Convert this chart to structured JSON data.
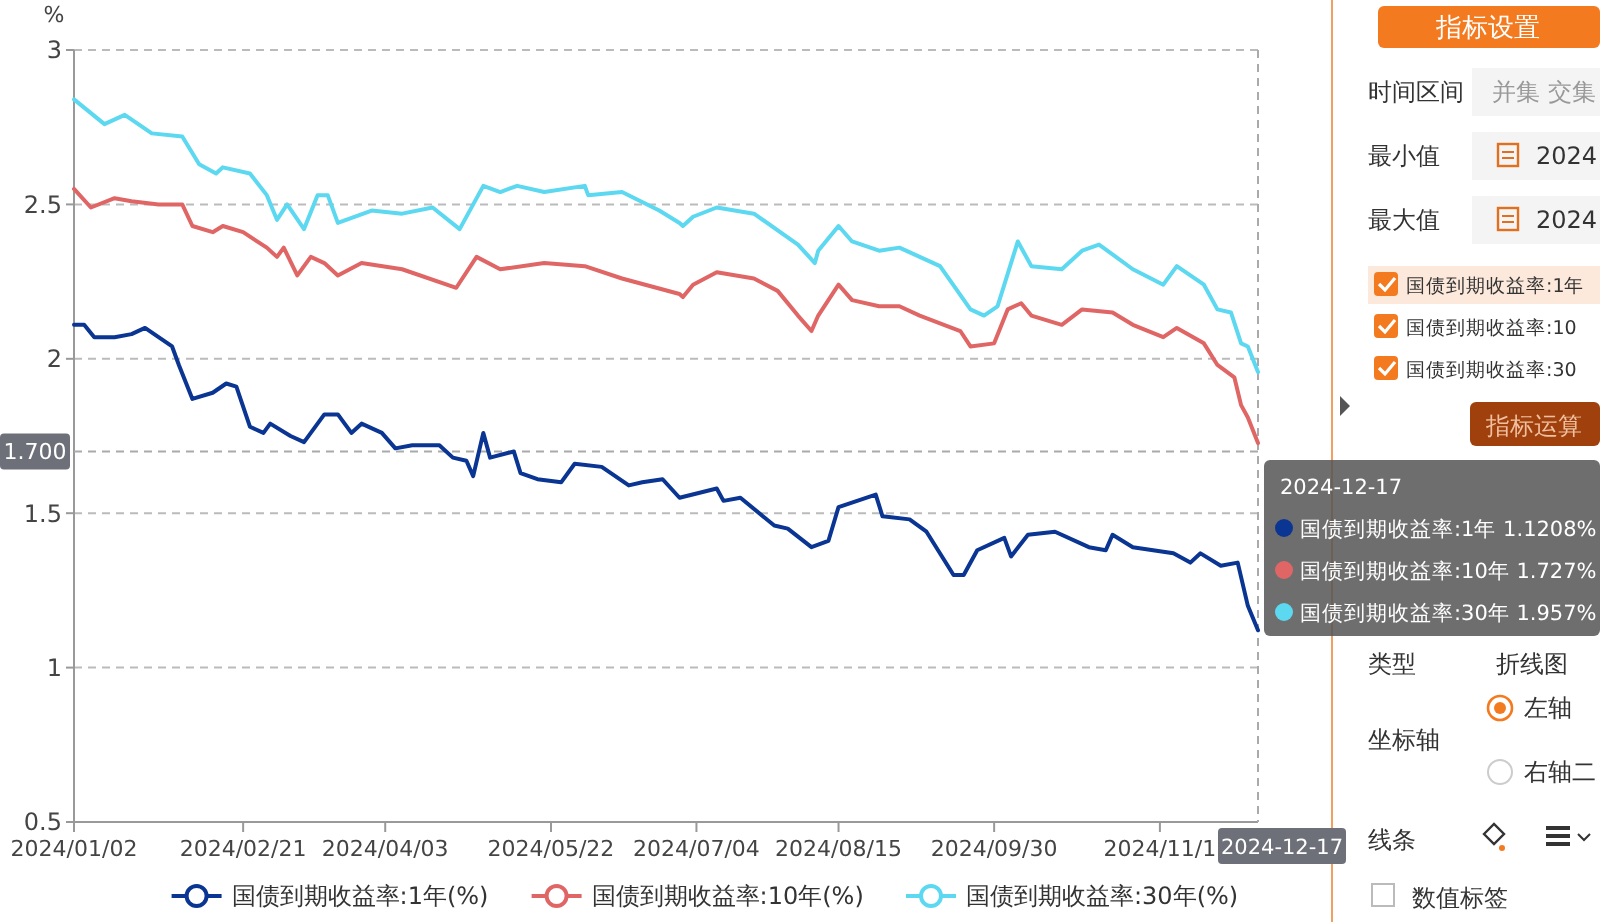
{
  "chart_data": [
    {
      "type": "line",
      "ylabel": "%",
      "xlim": [
        "2024-01-02",
        "2024-12-17"
      ],
      "xticks": [
        {
          "value": "2024-01-02",
          "label": "2024/01/02"
        },
        {
          "value": "2024-02-21",
          "label": "2024/02/21"
        },
        {
          "value": "2024-04-03",
          "label": "2024/04/03"
        },
        {
          "value": "2024-05-22",
          "label": "2024/05/22"
        },
        {
          "value": "2024-07-04",
          "label": "2024/07/04"
        },
        {
          "value": "2024-08-15",
          "label": "2024/08/15"
        },
        {
          "value": "2024-09-30",
          "label": "2024/09/30"
        },
        {
          "value": "2024-11-18",
          "label": "2024/11/1"
        }
      ],
      "ylim": [
        0.5,
        3
      ],
      "yticks": [
        0.5,
        1,
        1.5,
        2,
        2.5,
        3
      ],
      "grid": "y",
      "legend": "bottom",
      "marker": "none",
      "line_style": "solid",
      "ref_lines": [
        {
          "axis": "y",
          "value": 1.7,
          "label": "1.700"
        },
        {
          "axis": "x",
          "value": "2024-12-17",
          "label": "2024-12-17"
        }
      ],
      "annotations": [
        "2024-12-17",
        "国债到期收益率:1年 1.1208%",
        "国债到期收益率:10年 1.727%",
        "国债到期收益率:30年 1.957%"
      ],
      "series": [
        {
          "name": "国债到期收益率:1年(%)",
          "color": "#0a3592",
          "x": [
            "2024-01-02",
            "2024-01-05",
            "2024-01-08",
            "2024-01-14",
            "2024-01-19",
            "2024-01-23",
            "2024-01-27",
            "2024-01-31",
            "2024-02-02",
            "2024-02-06",
            "2024-02-12",
            "2024-02-16",
            "2024-02-19",
            "2024-02-23",
            "2024-02-27",
            "2024-02-29",
            "2024-03-06",
            "2024-03-10",
            "2024-03-16",
            "2024-03-20",
            "2024-03-24",
            "2024-03-27",
            "2024-04-02",
            "2024-04-06",
            "2024-04-11",
            "2024-04-15",
            "2024-04-19",
            "2024-04-23",
            "2024-04-27",
            "2024-04-29",
            "2024-05-02",
            "2024-05-04",
            "2024-05-11",
            "2024-05-13",
            "2024-05-18",
            "2024-05-25",
            "2024-05-29",
            "2024-06-06",
            "2024-06-14",
            "2024-06-18",
            "2024-06-24",
            "2024-06-29",
            "2024-07-10",
            "2024-07-12",
            "2024-07-17",
            "2024-07-27",
            "2024-07-31",
            "2024-08-07",
            "2024-08-12",
            "2024-08-15",
            "2024-08-26",
            "2024-08-28",
            "2024-09-05",
            "2024-09-10",
            "2024-09-18",
            "2024-09-21",
            "2024-09-25",
            "2024-10-03",
            "2024-10-05",
            "2024-10-10",
            "2024-10-18",
            "2024-10-28",
            "2024-11-02",
            "2024-11-04",
            "2024-11-10",
            "2024-11-22",
            "2024-11-27",
            "2024-11-30",
            "2024-12-06",
            "2024-12-11",
            "2024-12-14",
            "2024-12-17"
          ],
          "values": [
            2.11,
            2.11,
            2.07,
            2.07,
            2.08,
            2.1,
            2.07,
            2.04,
            1.98,
            1.87,
            1.89,
            1.92,
            1.91,
            1.78,
            1.76,
            1.79,
            1.75,
            1.73,
            1.82,
            1.82,
            1.76,
            1.79,
            1.76,
            1.71,
            1.72,
            1.72,
            1.72,
            1.68,
            1.67,
            1.62,
            1.76,
            1.68,
            1.7,
            1.63,
            1.61,
            1.6,
            1.66,
            1.65,
            1.59,
            1.6,
            1.61,
            1.55,
            1.58,
            1.54,
            1.55,
            1.46,
            1.45,
            1.39,
            1.41,
            1.52,
            1.56,
            1.49,
            1.48,
            1.44,
            1.3,
            1.3,
            1.38,
            1.42,
            1.36,
            1.43,
            1.44,
            1.39,
            1.38,
            1.43,
            1.39,
            1.37,
            1.34,
            1.37,
            1.33,
            1.34,
            1.2,
            1.1208
          ]
        },
        {
          "name": "国债到期收益率:10年(%)",
          "color": "#e06666",
          "x": [
            "2024-01-02",
            "2024-01-07",
            "2024-01-14",
            "2024-01-19",
            "2024-01-27",
            "2024-02-03",
            "2024-02-06",
            "2024-02-12",
            "2024-02-15",
            "2024-02-21",
            "2024-02-28",
            "2024-03-02",
            "2024-03-04",
            "2024-03-08",
            "2024-03-12",
            "2024-03-16",
            "2024-03-20",
            "2024-03-27",
            "2024-04-08",
            "2024-04-24",
            "2024-04-30",
            "2024-05-07",
            "2024-05-20",
            "2024-06-01",
            "2024-06-12",
            "2024-06-29",
            "2024-06-30",
            "2024-07-03",
            "2024-07-10",
            "2024-07-21",
            "2024-07-28",
            "2024-08-03",
            "2024-08-07",
            "2024-08-09",
            "2024-08-15",
            "2024-08-19",
            "2024-08-27",
            "2024-09-02",
            "2024-09-08",
            "2024-09-20",
            "2024-09-23",
            "2024-09-30",
            "2024-10-04",
            "2024-10-08",
            "2024-10-11",
            "2024-10-20",
            "2024-10-26",
            "2024-11-04",
            "2024-11-10",
            "2024-11-19",
            "2024-11-23",
            "2024-12-01",
            "2024-12-05",
            "2024-12-10",
            "2024-12-12",
            "2024-12-14",
            "2024-12-17"
          ],
          "values": [
            2.55,
            2.49,
            2.52,
            2.51,
            2.5,
            2.5,
            2.43,
            2.41,
            2.43,
            2.41,
            2.36,
            2.33,
            2.36,
            2.27,
            2.33,
            2.31,
            2.27,
            2.31,
            2.29,
            2.23,
            2.33,
            2.29,
            2.31,
            2.3,
            2.26,
            2.21,
            2.2,
            2.24,
            2.28,
            2.26,
            2.22,
            2.14,
            2.09,
            2.14,
            2.24,
            2.19,
            2.17,
            2.17,
            2.14,
            2.09,
            2.04,
            2.05,
            2.16,
            2.18,
            2.14,
            2.11,
            2.16,
            2.15,
            2.11,
            2.07,
            2.1,
            2.05,
            1.98,
            1.94,
            1.85,
            1.81,
            1.727
          ]
        },
        {
          "name": "国债到期收益率:30年(%)",
          "color": "#5cd8f0",
          "x": [
            "2024-01-02",
            "2024-01-11",
            "2024-01-17",
            "2024-01-25",
            "2024-02-03",
            "2024-02-08",
            "2024-02-13",
            "2024-02-15",
            "2024-02-23",
            "2024-02-28",
            "2024-03-02",
            "2024-03-05",
            "2024-03-10",
            "2024-03-14",
            "2024-03-17",
            "2024-03-20",
            "2024-03-30",
            "2024-04-08",
            "2024-04-17",
            "2024-04-25",
            "2024-05-02",
            "2024-05-07",
            "2024-05-12",
            "2024-05-20",
            "2024-06-01",
            "2024-06-02",
            "2024-06-12",
            "2024-06-23",
            "2024-06-29",
            "2024-06-30",
            "2024-07-03",
            "2024-07-10",
            "2024-07-21",
            "2024-08-03",
            "2024-08-08",
            "2024-08-09",
            "2024-08-15",
            "2024-08-19",
            "2024-08-27",
            "2024-09-02",
            "2024-09-08",
            "2024-09-14",
            "2024-09-23",
            "2024-09-27",
            "2024-10-01",
            "2024-10-07",
            "2024-10-11",
            "2024-10-20",
            "2024-10-26",
            "2024-10-31",
            "2024-11-10",
            "2024-11-19",
            "2024-11-23",
            "2024-12-01",
            "2024-12-05",
            "2024-12-09",
            "2024-12-12",
            "2024-12-14",
            "2024-12-17"
          ],
          "values": [
            2.84,
            2.76,
            2.79,
            2.73,
            2.72,
            2.63,
            2.6,
            2.62,
            2.6,
            2.53,
            2.45,
            2.5,
            2.42,
            2.53,
            2.53,
            2.44,
            2.48,
            2.47,
            2.49,
            2.42,
            2.56,
            2.54,
            2.56,
            2.54,
            2.56,
            2.53,
            2.54,
            2.48,
            2.44,
            2.43,
            2.46,
            2.49,
            2.47,
            2.37,
            2.31,
            2.35,
            2.43,
            2.38,
            2.35,
            2.36,
            2.33,
            2.3,
            2.16,
            2.14,
            2.17,
            2.38,
            2.3,
            2.29,
            2.35,
            2.37,
            2.29,
            2.24,
            2.3,
            2.24,
            2.16,
            2.15,
            2.05,
            2.04,
            1.957
          ]
        }
      ]
    },
    {
      "type": "other",
      "title": "指标设置",
      "annotations": [
        "时间区间",
        "并集",
        "交集",
        "最小值",
        "2024",
        "最大值",
        "2024",
        "国债到期收益率:1年",
        "国债到期收益率:10",
        "国债到期收益率:30",
        "指标运算",
        "类型",
        "折线图",
        "坐标轴",
        "左轴",
        "右轴二",
        "线条",
        "数值标签"
      ]
    }
  ]
}
